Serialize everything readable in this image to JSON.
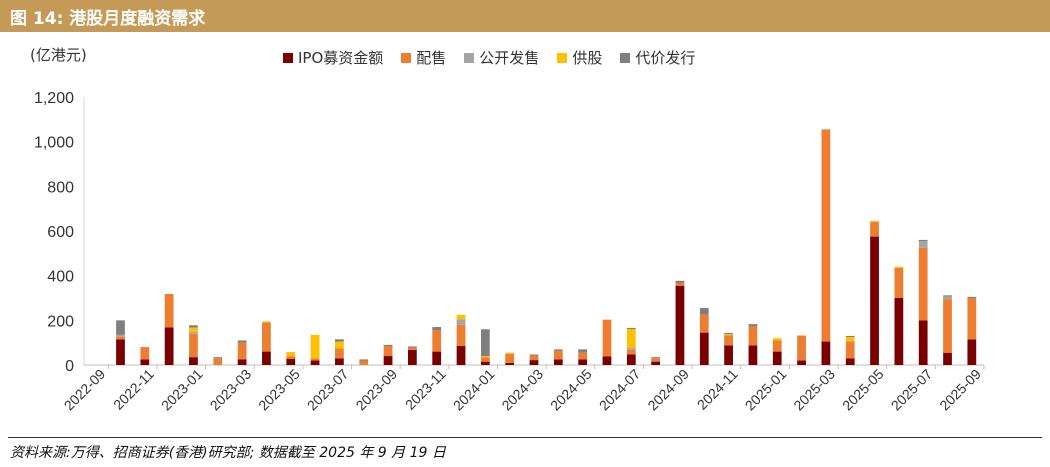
{
  "figure": {
    "title": "图 14:  港股月度融资需求",
    "source": "资料来源:万得、招商证券(香港)研究部; 数据截至 2025 年 9 月 19 日"
  },
  "chart_data": {
    "type": "bar",
    "stacked": true,
    "unit_label": "(亿港元)",
    "ylim": [
      0,
      1200
    ],
    "yticks": [
      "0",
      "200",
      "400",
      "600",
      "800",
      "1,000",
      "1,200"
    ],
    "grid": false,
    "legend_position": "top",
    "categories": [
      "2022-09",
      "2022-10",
      "2022-11",
      "2022-12",
      "2023-01",
      "2023-02",
      "2023-03",
      "2023-04",
      "2023-05",
      "2023-06",
      "2023-07",
      "2023-08",
      "2023-09",
      "2023-10",
      "2023-11",
      "2023-12",
      "2024-01",
      "2024-02",
      "2024-03",
      "2024-04",
      "2024-05",
      "2024-06",
      "2024-07",
      "2024-08",
      "2024-09",
      "2024-10",
      "2024-11",
      "2024-12",
      "2025-01",
      "2025-02",
      "2025-03",
      "2025-04",
      "2025-05",
      "2025-06",
      "2025-07",
      "2025-08",
      "2025-09"
    ],
    "tick_labels": [
      "2022-09",
      "2022-11",
      "2023-01",
      "2023-03",
      "2023-05",
      "2023-07",
      "2023-09",
      "2023-11",
      "2024-01",
      "2024-03",
      "2024-05",
      "2024-07",
      "2024-09",
      "2024-11",
      "2025-01",
      "2025-03",
      "2025-05",
      "2025-07",
      "2025-09"
    ],
    "series": [
      {
        "name": "IPO募资金额",
        "color": "#7a0000",
        "values": [
          0,
          115,
          25,
          168,
          35,
          0,
          25,
          60,
          28,
          20,
          30,
          0,
          40,
          68,
          60,
          85,
          15,
          10,
          22,
          25,
          25,
          38,
          48,
          15,
          355,
          145,
          88,
          88,
          60,
          20,
          105,
          30,
          575,
          300,
          200,
          55,
          115
        ]
      },
      {
        "name": "配售",
        "color": "#ed7d31",
        "values": [
          0,
          12,
          55,
          150,
          105,
          30,
          75,
          130,
          10,
          10,
          45,
          20,
          45,
          10,
          95,
          95,
          20,
          40,
          20,
          40,
          30,
          165,
          20,
          15,
          12,
          80,
          45,
          85,
          50,
          112,
          950,
          75,
          65,
          135,
          325,
          240,
          185
        ]
      },
      {
        "name": "公开发售",
        "color": "#a5a5a5",
        "values": [
          0,
          8,
          0,
          0,
          8,
          0,
          0,
          0,
          0,
          0,
          0,
          0,
          0,
          0,
          0,
          25,
          0,
          0,
          0,
          0,
          0,
          0,
          8,
          0,
          0,
          0,
          0,
          0,
          0,
          0,
          0,
          0,
          0,
          0,
          30,
          12,
          0
        ]
      },
      {
        "name": "供股",
        "color": "#ffc000",
        "values": [
          0,
          0,
          0,
          0,
          20,
          0,
          0,
          5,
          20,
          105,
          30,
          0,
          0,
          0,
          0,
          20,
          5,
          5,
          0,
          0,
          0,
          0,
          85,
          0,
          0,
          0,
          5,
          0,
          10,
          0,
          0,
          20,
          5,
          5,
          0,
          0,
          0
        ]
      },
      {
        "name": "代价发行",
        "color": "#7f7f7f",
        "values": [
          0,
          65,
          0,
          0,
          10,
          5,
          10,
          0,
          0,
          0,
          10,
          5,
          5,
          5,
          15,
          0,
          120,
          0,
          5,
          5,
          15,
          0,
          5,
          5,
          10,
          30,
          5,
          10,
          0,
          0,
          0,
          5,
          0,
          0,
          5,
          5,
          5
        ]
      }
    ]
  }
}
